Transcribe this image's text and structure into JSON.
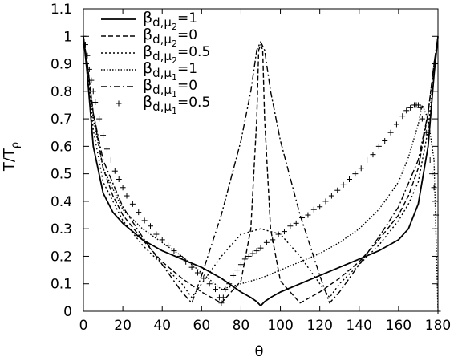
{
  "chart_data": {
    "type": "line",
    "xlabel": "θ",
    "ylabel": "T/T",
    "ylabel_sub": "ρ",
    "xlim": [
      0,
      180
    ],
    "ylim": [
      0,
      1.1
    ],
    "x_ticks": [
      0,
      20,
      40,
      60,
      80,
      100,
      120,
      140,
      160,
      180
    ],
    "x_tick_labels": [
      "0",
      "20",
      "40",
      "60",
      "80",
      "100",
      "120",
      "140",
      "160",
      "180"
    ],
    "y_ticks": [
      0,
      0.1,
      0.2,
      0.3,
      0.4,
      0.5,
      0.6,
      0.7,
      0.8,
      0.9,
      1,
      1.1
    ],
    "y_tick_labels": [
      "0",
      "0.1",
      "0.2",
      "0.3",
      "0.4",
      "0.5",
      "0.6",
      "0.7",
      "0.8",
      "0.9",
      "1",
      "1.1"
    ],
    "grid": false,
    "legend_position": "top-left",
    "series": [
      {
        "name": "β d,μ2 =1",
        "legend": {
          "base": "β",
          "sub1": "d,μ",
          "sub2": "2",
          "val": "=1"
        },
        "style": "solid",
        "color": "#000000",
        "x": [
          0,
          2,
          5,
          10,
          15,
          20,
          30,
          40,
          50,
          60,
          70,
          80,
          85,
          88,
          90,
          92,
          95,
          100,
          110,
          120,
          130,
          140,
          150,
          160,
          165,
          170,
          175,
          178,
          180
        ],
        "y": [
          1.0,
          0.86,
          0.6,
          0.43,
          0.36,
          0.32,
          0.26,
          0.22,
          0.19,
          0.16,
          0.12,
          0.07,
          0.05,
          0.035,
          0.02,
          0.035,
          0.05,
          0.07,
          0.1,
          0.13,
          0.16,
          0.19,
          0.22,
          0.26,
          0.3,
          0.39,
          0.6,
          0.86,
          1.0
        ]
      },
      {
        "name": "β d,μ2 =0",
        "legend": {
          "base": "β",
          "sub1": "d,μ",
          "sub2": "2",
          "val": "=0"
        },
        "style": "dashed",
        "color": "#000000",
        "x": [
          0,
          2,
          5,
          10,
          15,
          20,
          30,
          40,
          50,
          60,
          70,
          80,
          85,
          88,
          89,
          90,
          91,
          92,
          95,
          100,
          110,
          120,
          130,
          140,
          150,
          160,
          165,
          170,
          175,
          178,
          180
        ],
        "y": [
          1.0,
          0.9,
          0.72,
          0.52,
          0.42,
          0.35,
          0.26,
          0.18,
          0.12,
          0.07,
          0.03,
          0.11,
          0.3,
          0.7,
          0.95,
          0.97,
          0.95,
          0.7,
          0.3,
          0.11,
          0.03,
          0.07,
          0.12,
          0.18,
          0.26,
          0.35,
          0.42,
          0.52,
          0.72,
          0.9,
          1.0
        ]
      },
      {
        "name": "β d,μ2 =0.5",
        "legend": {
          "base": "β",
          "sub1": "d,μ",
          "sub2": "2",
          "val": "=0.5"
        },
        "style": "dotted",
        "color": "#000000",
        "x": [
          0,
          2,
          5,
          10,
          20,
          30,
          40,
          50,
          55,
          60,
          65,
          70,
          80,
          90,
          100,
          110,
          115,
          120,
          125,
          130,
          140,
          150,
          160,
          165,
          170,
          175,
          178,
          180
        ],
        "y": [
          1.0,
          0.88,
          0.66,
          0.47,
          0.33,
          0.24,
          0.17,
          0.1,
          0.05,
          0.1,
          0.15,
          0.2,
          0.28,
          0.3,
          0.28,
          0.2,
          0.15,
          0.1,
          0.05,
          0.1,
          0.17,
          0.24,
          0.33,
          0.39,
          0.47,
          0.66,
          0.88,
          1.0
        ]
      },
      {
        "name": "β d,μ1 =1",
        "legend": {
          "base": "β",
          "sub1": "d,μ",
          "sub2": "1",
          "val": "=1"
        },
        "style": "densedot",
        "color": "#000000",
        "x": [
          0,
          2,
          5,
          10,
          20,
          30,
          40,
          50,
          60,
          65,
          70,
          75,
          80,
          90,
          100,
          110,
          120,
          130,
          140,
          150,
          160,
          165,
          170,
          172,
          175,
          178,
          180
        ],
        "y": [
          1.0,
          0.9,
          0.7,
          0.52,
          0.37,
          0.3,
          0.25,
          0.2,
          0.14,
          0.11,
          0.08,
          0.09,
          0.1,
          0.12,
          0.15,
          0.18,
          0.21,
          0.25,
          0.3,
          0.37,
          0.47,
          0.56,
          0.68,
          0.75,
          0.7,
          0.55,
          0.0
        ]
      },
      {
        "name": "β d,μ1 =0",
        "legend": {
          "base": "β",
          "sub1": "d,μ",
          "sub2": "1",
          "val": "=0"
        },
        "style": "dashdot",
        "color": "#000000",
        "x": [
          0,
          2,
          5,
          10,
          20,
          30,
          40,
          45,
          50,
          55,
          60,
          70,
          80,
          85,
          88,
          90,
          92,
          95,
          100,
          110,
          120,
          125,
          130,
          135,
          140,
          150,
          160,
          170,
          175,
          178,
          180
        ],
        "y": [
          1.0,
          0.9,
          0.72,
          0.55,
          0.38,
          0.27,
          0.17,
          0.12,
          0.07,
          0.03,
          0.13,
          0.35,
          0.62,
          0.8,
          0.95,
          0.98,
          0.95,
          0.8,
          0.62,
          0.35,
          0.13,
          0.03,
          0.07,
          0.12,
          0.17,
          0.27,
          0.38,
          0.55,
          0.72,
          0.9,
          1.0
        ]
      },
      {
        "name": "β d,μ1 =0.5",
        "legend": {
          "base": "β",
          "sub1": "d,μ",
          "sub2": "1",
          "val": "=0.5"
        },
        "style": "plus",
        "color": "#000000",
        "x": [
          0,
          1,
          2,
          3,
          4,
          5,
          6,
          8,
          10,
          12,
          14,
          16,
          18,
          20,
          22,
          25,
          28,
          31,
          34,
          37,
          40,
          43,
          46,
          49,
          52,
          55,
          58,
          61,
          64,
          67,
          69,
          70,
          71,
          72,
          74,
          76,
          78,
          80,
          82,
          84,
          86,
          88,
          90,
          93,
          96,
          99,
          102,
          105,
          108,
          111,
          114,
          117,
          120,
          123,
          126,
          129,
          132,
          135,
          138,
          141,
          144,
          147,
          150,
          153,
          156,
          159,
          162,
          164,
          166,
          168,
          169,
          170,
          171,
          172,
          174,
          176,
          177,
          178,
          179,
          180
        ],
        "y": [
          1.0,
          0.97,
          0.93,
          0.88,
          0.84,
          0.8,
          0.76,
          0.7,
          0.64,
          0.59,
          0.55,
          0.51,
          0.48,
          0.45,
          0.42,
          0.39,
          0.36,
          0.33,
          0.31,
          0.28,
          0.26,
          0.24,
          0.22,
          0.2,
          0.18,
          0.16,
          0.14,
          0.12,
          0.1,
          0.08,
          0.05,
          0.03,
          0.05,
          0.08,
          0.1,
          0.13,
          0.15,
          0.17,
          0.19,
          0.2,
          0.21,
          0.22,
          0.23,
          0.25,
          0.26,
          0.28,
          0.29,
          0.31,
          0.32,
          0.34,
          0.35,
          0.37,
          0.38,
          0.4,
          0.42,
          0.44,
          0.46,
          0.48,
          0.5,
          0.52,
          0.55,
          0.57,
          0.6,
          0.62,
          0.65,
          0.68,
          0.71,
          0.73,
          0.74,
          0.75,
          0.75,
          0.75,
          0.74,
          0.7,
          0.65,
          0.55,
          0.5,
          0.45,
          0.35,
          0.0
        ]
      }
    ]
  }
}
